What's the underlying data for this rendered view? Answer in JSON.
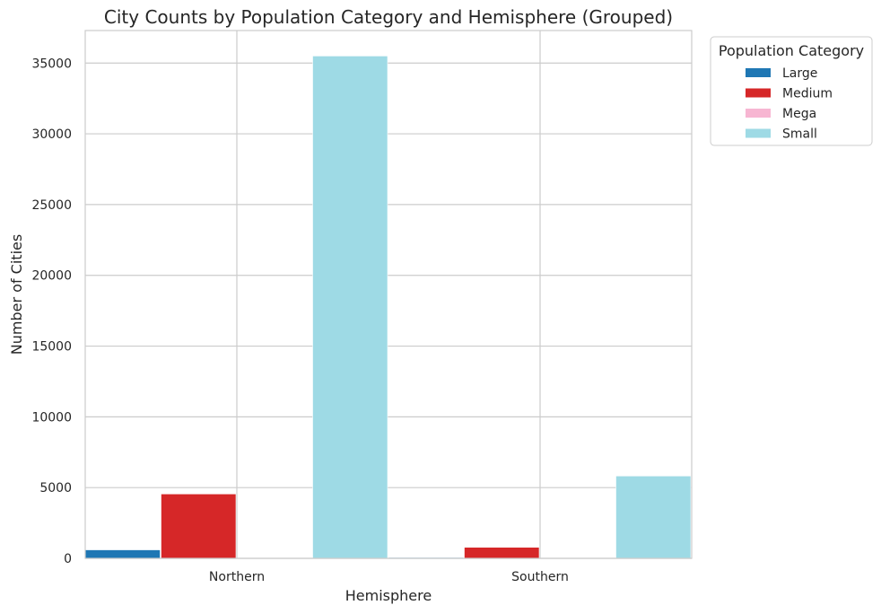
{
  "chart_data": {
    "type": "bar",
    "title": "City Counts by Population Category and Hemisphere (Grouped)",
    "xlabel": "Hemisphere",
    "ylabel": "Number of Cities",
    "categories": [
      "Northern",
      "Southern"
    ],
    "series": [
      {
        "name": "Large",
        "color": "#1f77b4",
        "values": [
          600,
          60
        ]
      },
      {
        "name": "Medium",
        "color": "#d62728",
        "values": [
          4550,
          780
        ]
      },
      {
        "name": "Mega",
        "color": "#f7b6d2",
        "values": [
          15,
          3
        ]
      },
      {
        "name": "Small",
        "color": "#9edae5",
        "values": [
          35500,
          5820
        ]
      }
    ],
    "ylim": [
      0,
      37300
    ],
    "yticks": [
      0,
      5000,
      10000,
      15000,
      20000,
      25000,
      30000,
      35000
    ],
    "grid": true,
    "legend": {
      "title": "Population Category",
      "placement": "outside-top-right"
    }
  }
}
